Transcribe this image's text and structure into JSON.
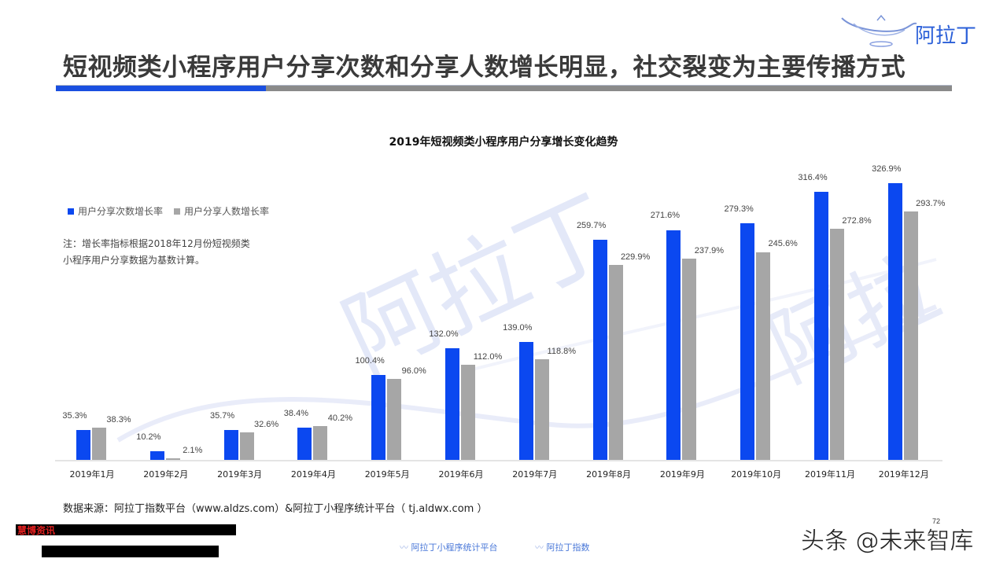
{
  "header": {
    "title": "短视频类小程序用户分享次数和分享人数增长明显，社交裂变为主要传播方式",
    "logo_text": "阿拉丁",
    "accent_color": "#1a4fe0",
    "rule_gray_color": "#8a8a8a"
  },
  "legend": {
    "series_1": "用户分享次数增长率",
    "series_2": "用户分享人数增长率"
  },
  "note": {
    "line_1": "注：增长率指标根据2018年12月份短视频类",
    "line_2": "小程序用户分享数据为基数计算。"
  },
  "footer": {
    "source": "数据来源：阿拉丁指数平台（www.aldzs.com）&阿拉丁小程序统计平台（ tj.aldwx.com ）",
    "redacted_label": "慧博资讯",
    "logo_1": "阿拉丁小程序统计平台",
    "logo_2": "阿拉丁指数",
    "watermark": "头条 @未来智库",
    "page_number": "72"
  },
  "chart_data": {
    "type": "bar",
    "title": "2019年短视频类小程序用户分享增长变化趋势",
    "xlabel": "",
    "ylabel": "",
    "ylim": [
      0,
      340
    ],
    "grid": false,
    "legend_position": "top-left",
    "categories": [
      "2019年1月",
      "2019年2月",
      "2019年3月",
      "2019年4月",
      "2019年5月",
      "2019年6月",
      "2019年7月",
      "2019年8月",
      "2019年9月",
      "2019年10月",
      "2019年11月",
      "2019年12月"
    ],
    "series": [
      {
        "name": "用户分享次数增长率",
        "color": "#0b48f0",
        "values": [
          35.3,
          10.2,
          35.7,
          38.4,
          100.4,
          132.0,
          139.0,
          259.7,
          271.6,
          279.3,
          316.4,
          326.9
        ],
        "labels": [
          "35.3%",
          "10.2%",
          "35.7%",
          "38.4%",
          "100.4%",
          "132.0%",
          "139.0%",
          "259.7%",
          "271.6%",
          "279.3%",
          "316.4%",
          "326.9%"
        ]
      },
      {
        "name": "用户分享人数增长率",
        "color": "#a6a6a6",
        "values": [
          38.3,
          2.1,
          32.6,
          40.2,
          96.0,
          112.0,
          118.8,
          229.9,
          237.9,
          245.6,
          272.8,
          293.7
        ],
        "labels": [
          "38.3%",
          "2.1%",
          "32.6%",
          "40.2%",
          "96.0%",
          "112.0%",
          "118.8%",
          "229.9%",
          "237.9%",
          "245.6%",
          "272.8%",
          "293.7%"
        ]
      }
    ]
  }
}
